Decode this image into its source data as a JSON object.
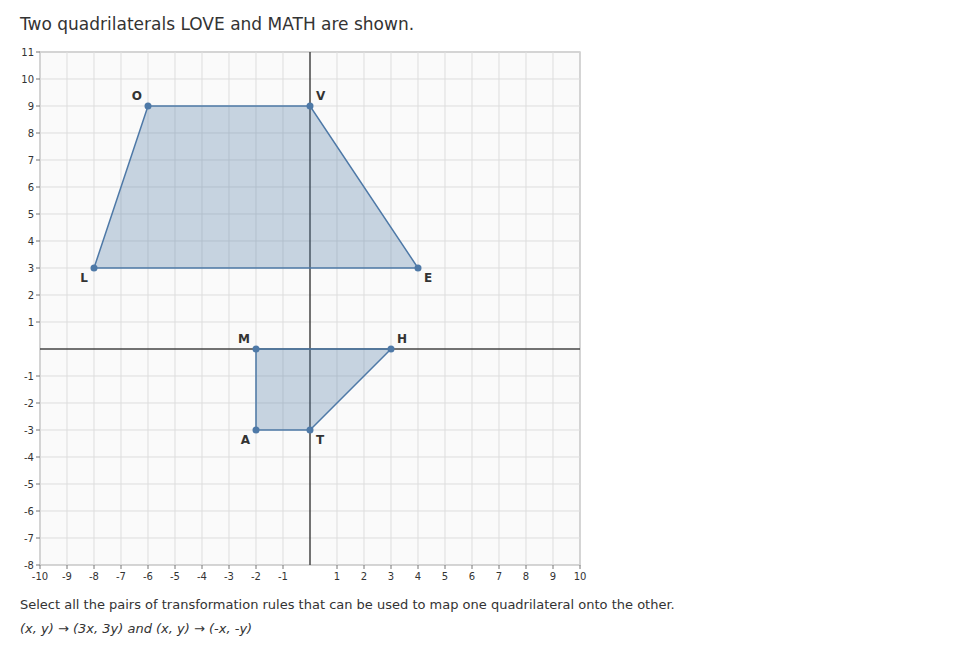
{
  "chart_data": {
    "type": "polygon",
    "title": "Two quadrilaterals LOVE and MATH are shown.",
    "subtitle": "Select all the pairs of transformation rules that can be used to map one quadrilateral onto the other.",
    "annotations": [
      "(x, y) → (3x, 3y) and (x, y) → (-x, -y)"
    ],
    "series": [
      {
        "labels": [
          "O",
          "V",
          "E",
          "L"
        ],
        "x": [
          -6,
          0,
          4,
          -8
        ],
        "values": [
          9,
          9,
          3,
          3
        ]
      },
      {
        "labels": [
          "M",
          "A",
          "T",
          "H"
        ],
        "x": [
          -2,
          -2,
          0,
          3
        ],
        "values": [
          0,
          -3,
          -3,
          0
        ]
      }
    ],
    "xlim": [
      -10,
      10
    ],
    "ylim": [
      -8,
      11
    ],
    "xticks": [
      -10,
      -9,
      -8,
      -7,
      -6,
      -5,
      -4,
      -3,
      -2,
      -1,
      1,
      2,
      3,
      4,
      5,
      6,
      7,
      8,
      9,
      10
    ],
    "yticks": [
      -8,
      -7,
      -6,
      -5,
      -4,
      -3,
      -2,
      -1,
      1,
      2,
      3,
      4,
      5,
      6,
      7,
      8,
      9,
      10,
      11
    ],
    "grid": true
  }
}
